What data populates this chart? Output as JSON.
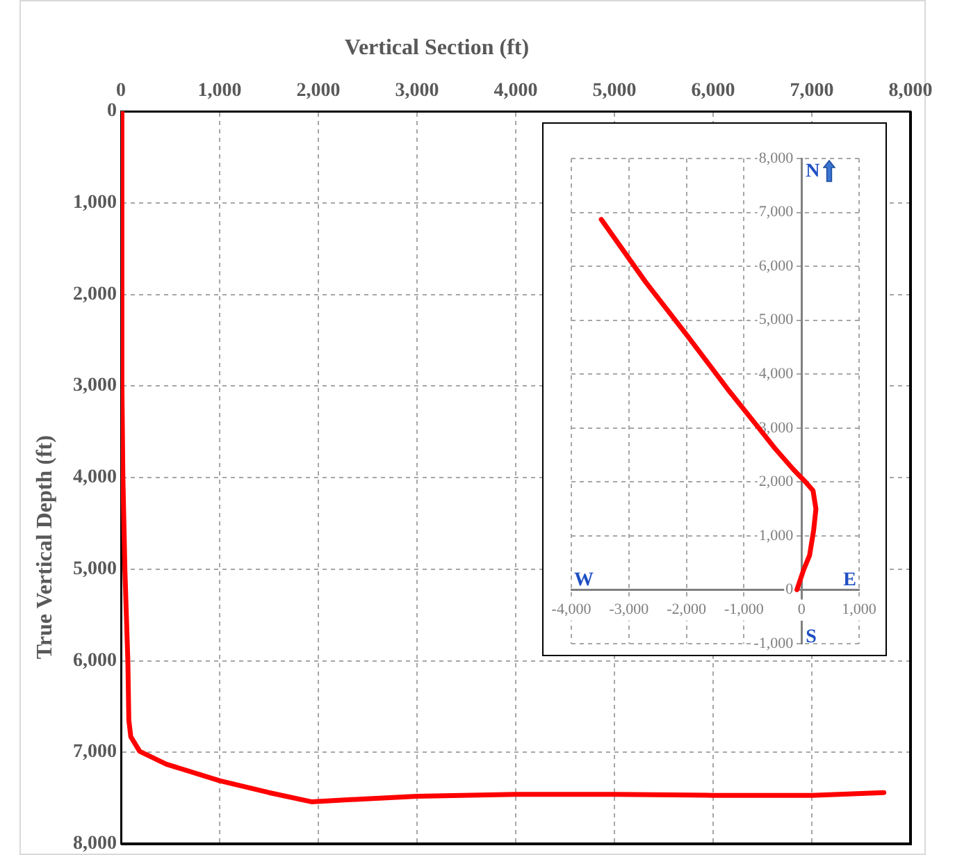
{
  "chart_data": [
    {
      "type": "line",
      "xlabel": "Vertical Section (ft)",
      "ylabel": "True Vertical Depth (ft)",
      "x": [
        0,
        10,
        20,
        40,
        70,
        80,
        100,
        190,
        460,
        1000,
        1500,
        1930,
        2450,
        3000,
        4000,
        5000,
        6000,
        7000,
        7730
      ],
      "values": [
        0,
        3000,
        4000,
        5000,
        6000,
        6650,
        6830,
        6990,
        7130,
        7310,
        7440,
        7540,
        7510,
        7480,
        7460,
        7460,
        7470,
        7470,
        7440
      ],
      "color": "#ff0000",
      "xlim": [
        0,
        8000
      ],
      "ylim": [
        8000,
        0
      ],
      "xticks": [
        0,
        {
          "value": 1000,
          "label": "1,000"
        },
        {
          "value": 2000,
          "label": "2,000"
        },
        {
          "value": 3000,
          "label": "3,000"
        },
        {
          "value": 4000,
          "label": "4,000"
        },
        {
          "value": 5000,
          "label": "5,000"
        },
        {
          "value": 6000,
          "label": "6,000"
        },
        {
          "value": 7000,
          "label": "7,000"
        },
        {
          "value": 8000,
          "label": "8,000"
        }
      ],
      "yticks": [
        0,
        {
          "value": 1000,
          "label": "1,000"
        },
        {
          "value": 2000,
          "label": "2,000"
        },
        {
          "value": 3000,
          "label": "3,000"
        },
        {
          "value": 4000,
          "label": "4,000"
        },
        {
          "value": 5000,
          "label": "5,000"
        },
        {
          "value": 6000,
          "label": "6,000"
        },
        {
          "value": 7000,
          "label": "7,000"
        },
        {
          "value": 8000,
          "label": "8,000"
        }
      ],
      "grid": true
    },
    {
      "type": "line",
      "annotations": [
        "N",
        "W",
        "E",
        "S"
      ],
      "x": [
        -80,
        40,
        140,
        210,
        250,
        200,
        60,
        -140,
        -460,
        -780,
        -1260,
        -1990,
        -2710,
        -3480
      ],
      "values": [
        0,
        380,
        640,
        1100,
        1500,
        1840,
        2010,
        2230,
        2620,
        3050,
        3690,
        4720,
        5710,
        6870
      ],
      "color": "#ff0000",
      "xlim": [
        -4000,
        1000
      ],
      "ylim": [
        -1000,
        8000
      ],
      "xticks": [
        {
          "value": -4000,
          "label": "-4,000"
        },
        {
          "value": -3000,
          "label": "-3,000"
        },
        {
          "value": -2000,
          "label": "-2,000"
        },
        {
          "value": -1000,
          "label": "-1,000"
        },
        0,
        {
          "value": 1000,
          "label": "1,000"
        }
      ],
      "yticks": [
        {
          "value": -1000,
          "label": "-1,000"
        },
        0,
        {
          "value": 1000,
          "label": "1,000"
        },
        {
          "value": 2000,
          "label": "2,000"
        },
        {
          "value": 3000,
          "label": "3,000"
        },
        {
          "value": 4000,
          "label": "4,000"
        },
        {
          "value": 5000,
          "label": "5,000"
        },
        {
          "value": 6000,
          "label": "6,000"
        },
        {
          "value": 7000,
          "label": "7,000"
        },
        {
          "value": 8000,
          "label": "8,000"
        }
      ],
      "grid": true
    }
  ]
}
